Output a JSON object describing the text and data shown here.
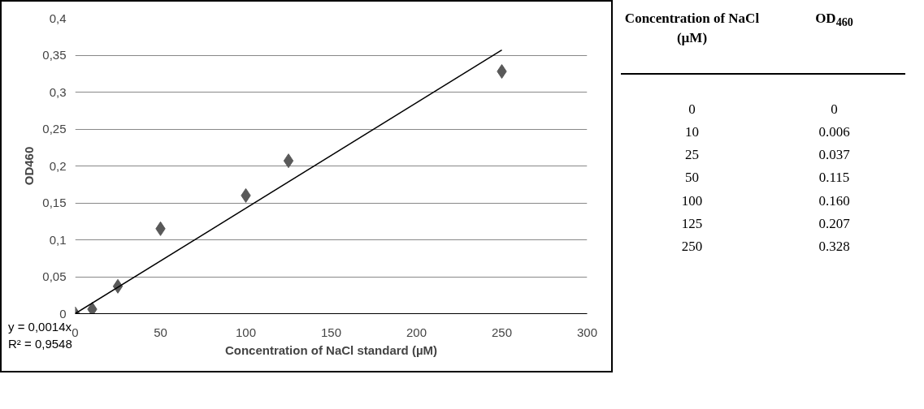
{
  "chart_data": [
    {
      "type": "scatter",
      "xlabel": "Concentration of NaCl standard (µM)",
      "ylabel": "OD460",
      "xlim": [
        0,
        300
      ],
      "xticks": [
        0,
        50,
        100,
        150,
        200,
        250,
        300
      ],
      "ylim": [
        0,
        0.4
      ],
      "yticks": [
        0,
        {
          "value": 0.05,
          "label": "0,05"
        },
        {
          "value": 0.1,
          "label": "0,1"
        },
        {
          "value": 0.15,
          "label": "0,15"
        },
        {
          "value": 0.2,
          "label": "0,2"
        },
        {
          "value": 0.25,
          "label": "0,25"
        },
        {
          "value": 0.3,
          "label": "0,3"
        },
        {
          "value": 0.35,
          "label": "0,35"
        },
        {
          "value": 0.4,
          "label": "0,4"
        }
      ],
      "grid": "y",
      "series": [
        {
          "type": "scatter",
          "color": "#595959",
          "marker": "diamond",
          "x": [
            0,
            10,
            25,
            50,
            100,
            125,
            250
          ],
          "values": [
            0,
            0.006,
            0.037,
            0.115,
            0.16,
            0.207,
            0.328
          ]
        },
        {
          "type": "line",
          "marker": "none",
          "color": "#000000",
          "x": [
            0,
            250
          ],
          "values": [
            0,
            0.357
          ]
        }
      ],
      "annotations": [
        "y = 0,0014x",
        "R² = 0,9548"
      ]
    },
    {
      "type": "other",
      "categories": [
        "0",
        "10",
        "25",
        "50",
        "100",
        "125",
        "250"
      ],
      "value_labels": [
        "0",
        "0.006",
        "0.037",
        "0.115",
        "0.160",
        "0.207",
        "0.328"
      ],
      "data_labels": true,
      "annotations": [
        "Concentration of NaCl (µM)",
        "OD$_{460}$"
      ]
    }
  ]
}
